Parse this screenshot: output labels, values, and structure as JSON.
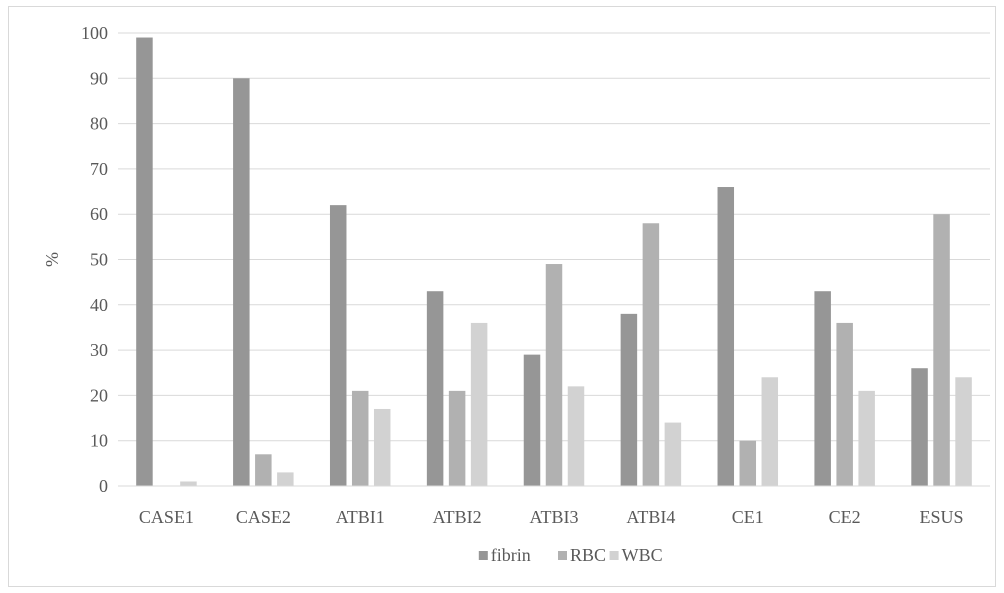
{
  "chart_data": {
    "type": "bar",
    "title": "",
    "xlabel": "",
    "ylabel": "%",
    "ylim": [
      0,
      100
    ],
    "yticks": [
      0,
      10,
      20,
      30,
      40,
      50,
      60,
      70,
      80,
      90,
      100
    ],
    "grid": true,
    "legend_position": "bottom",
    "categories": [
      "CASE1",
      "CASE2",
      "ATBI1",
      "ATBI2",
      "ATBI3",
      "ATBI4",
      "CE1",
      "CE2",
      "ESUS"
    ],
    "series": [
      {
        "name": "fibrin",
        "color": "#969696",
        "values": [
          99,
          90,
          62,
          43,
          29,
          38,
          66,
          43,
          26
        ]
      },
      {
        "name": "RBC",
        "color": "#b1b1b1",
        "values": [
          0,
          7,
          21,
          21,
          49,
          58,
          10,
          36,
          60
        ]
      },
      {
        "name": "WBC",
        "color": "#d2d2d2",
        "values": [
          1,
          3,
          17,
          36,
          22,
          14,
          24,
          21,
          24
        ]
      }
    ]
  }
}
